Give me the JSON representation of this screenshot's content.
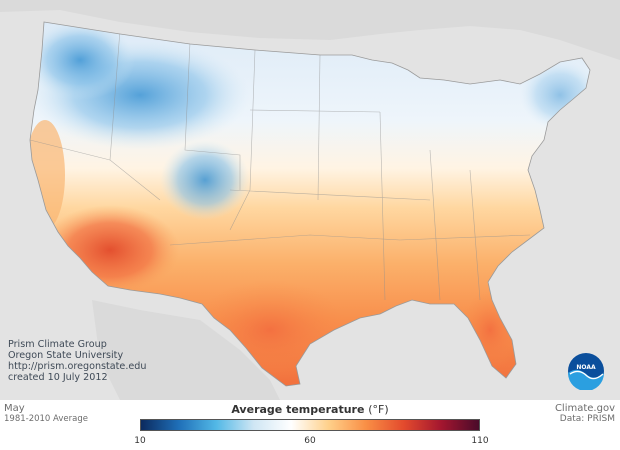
{
  "map": {
    "credits": [
      "Prism Climate Group",
      "Oregon State University",
      "http://prism.oregonstate.edu",
      "created 10 July 2012"
    ],
    "logo_text": "NOAA"
  },
  "footer": {
    "month": "May",
    "period": "1981-2010 Average",
    "source_line1": "Climate.gov",
    "source_line2": "Data: PRISM"
  },
  "legend": {
    "title": "Average temperature",
    "unit": "(°F)",
    "min": 10,
    "max": 110,
    "ticks": [
      {
        "value": 10,
        "label": "10"
      },
      {
        "value": 60,
        "label": "60"
      },
      {
        "value": 110,
        "label": "110"
      }
    ],
    "colors": [
      "#0b2a5e",
      "#1f6fb8",
      "#52b8e6",
      "#cfe6f4",
      "#ffffff",
      "#ffd08a",
      "#f98e45",
      "#e34a2d",
      "#a3162f",
      "#4a0b2a"
    ]
  }
}
